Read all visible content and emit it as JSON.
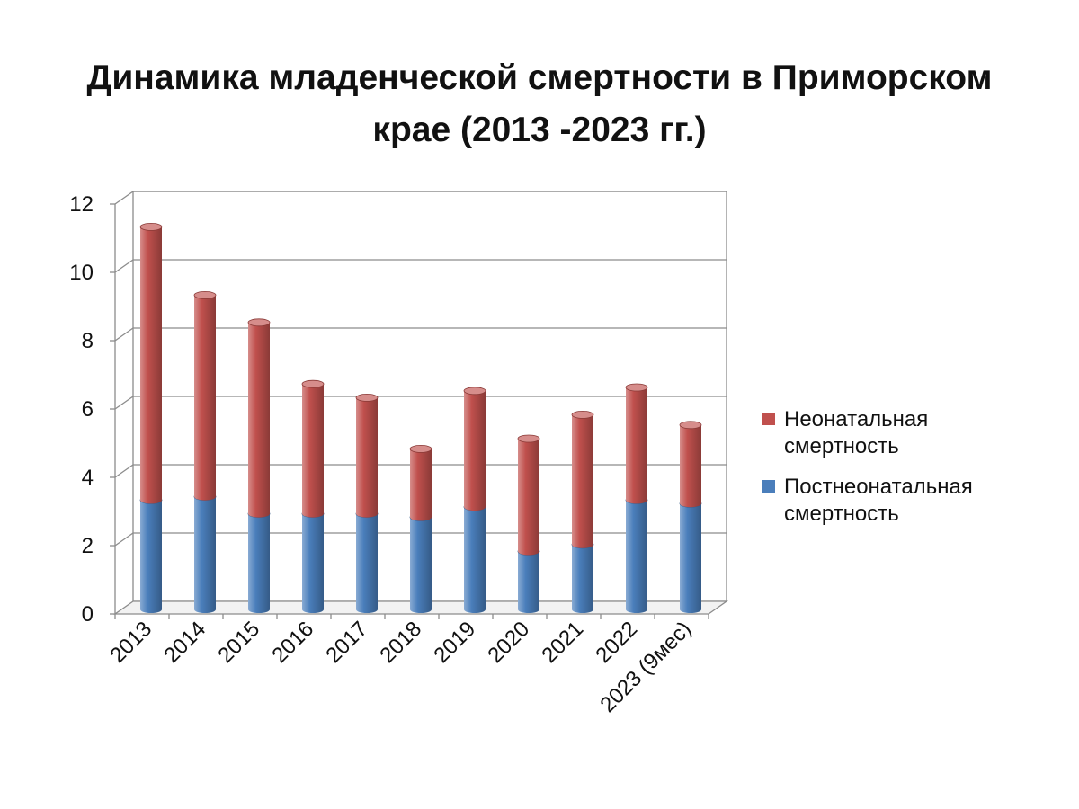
{
  "title_line1": "Динамика младенческой смертности в Приморском",
  "title_line2": "крае (2013 -2023 гг.)",
  "chart_data": {
    "type": "bar",
    "stacked": true,
    "three_d": true,
    "categories": [
      "2013",
      "2014",
      "2015",
      "2016",
      "2017",
      "2018",
      "2019",
      "2020",
      "2021",
      "2022",
      "2023 (9мес)"
    ],
    "series": [
      {
        "name": "Постнеонатальная смертность",
        "color": "#4a7ebb",
        "values": [
          3.2,
          3.3,
          2.8,
          2.8,
          2.8,
          2.7,
          3.0,
          1.7,
          1.9,
          3.2,
          3.1
        ]
      },
      {
        "name": "Неонатальная смертность",
        "color": "#c0504d",
        "values": [
          8.0,
          5.9,
          5.6,
          3.8,
          3.4,
          2.0,
          3.4,
          3.3,
          3.8,
          3.3,
          2.3
        ]
      }
    ],
    "legend": [
      {
        "lines": [
          "Неонатальная",
          "смертность"
        ],
        "color": "#c0504d"
      },
      {
        "lines": [
          "Постнеонатальная",
          "смертность"
        ],
        "color": "#4a7ebb"
      }
    ],
    "legend_position": "right",
    "ylim": [
      0,
      12
    ],
    "yticks": [
      "0",
      "2",
      "4",
      "6",
      "8",
      "10",
      "12"
    ],
    "grid": true
  }
}
